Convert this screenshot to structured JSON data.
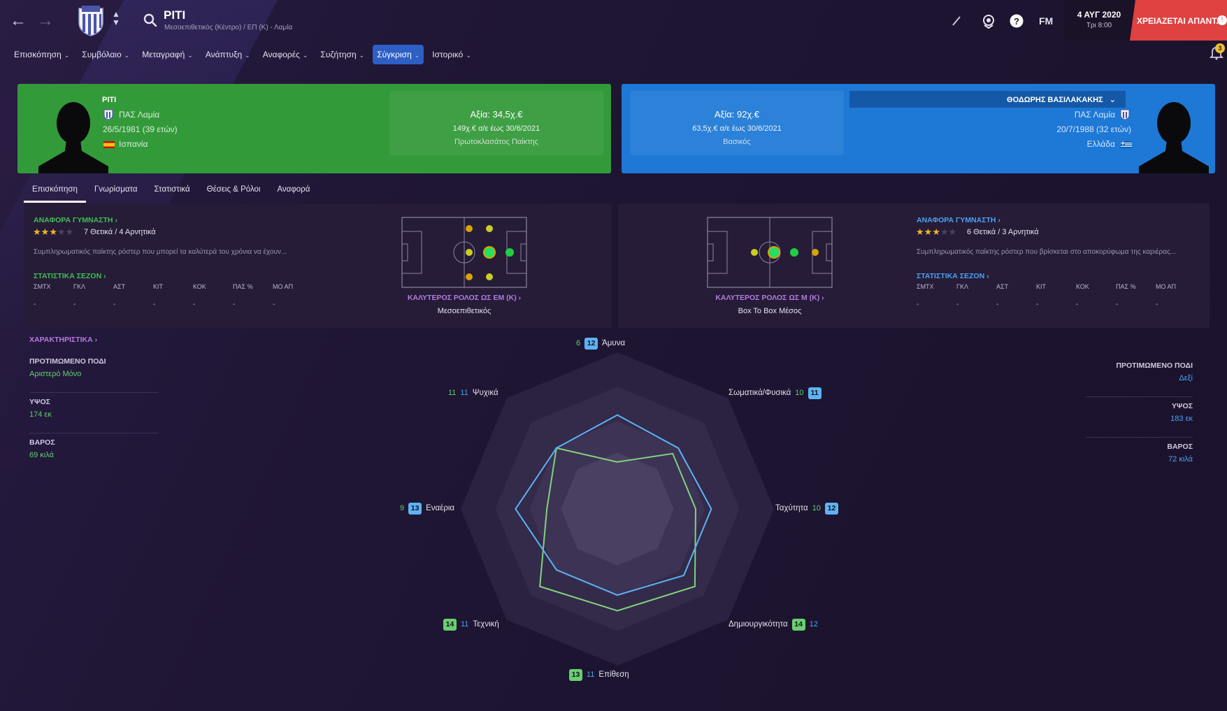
{
  "header": {
    "player_name": "PITI",
    "player_subtitle": "Μεσοεπιθετικός (Κέντρο) / ΕΠ (Κ) - Λαμία",
    "brand": "FM",
    "date": "4 ΑΥΓ 2020",
    "time": "Τρι 8:00",
    "alert": "ΧΡΕΙΑΖΕΤΑΙ ΑΠΑΝΤ...",
    "notification_count": "3"
  },
  "menu": [
    {
      "label": "Επισκόπηση",
      "active": false
    },
    {
      "label": "Συμβόλαιο",
      "active": false
    },
    {
      "label": "Μεταγραφή",
      "active": false
    },
    {
      "label": "Ανάπτυξη",
      "active": false
    },
    {
      "label": "Αναφορές",
      "active": false
    },
    {
      "label": "Συζήτηση",
      "active": false
    },
    {
      "label": "Σύγκριση",
      "active": true
    },
    {
      "label": "Ιστορικό",
      "active": false
    }
  ],
  "left_player": {
    "name": "PITI",
    "club": "ΠΑΣ Λαμία",
    "dob": "26/5/1981 (39 ετών)",
    "nationality": "Ισπανία",
    "value": "Αξία: 34,5χ.€",
    "wage": "149χ.€ α/ε έως 30/6/2021",
    "status": "Πρωτοκλασάτος Παίκτης",
    "color": "#339a3a"
  },
  "right_player": {
    "name": "ΘΟΔΩΡΗΣ ΒΑΣΙΛΑΚΑΚΗΣ",
    "club": "ΠΑΣ Λαμία",
    "dob": "20/7/1988 (32 ετών)",
    "nationality": "Ελλάδα",
    "value": "Αξία: 92χ.€",
    "wage": "63,5χ.€ α/ε έως 30/6/2021",
    "status": "Βασικός",
    "color": "#1d78d6"
  },
  "subtabs": [
    "Επισκόπηση",
    "Γνωρίσματα",
    "Στατιστικά",
    "Θέσεις & Ρόλοι",
    "Αναφορά"
  ],
  "left_panel": {
    "report_title": "ΑΝΑΦΟΡΑ ΓΥΜΝΑΣΤΗ",
    "stars": 3,
    "ratings": "7 Θετικά / 4 Αρνητικά",
    "description": "Συμπληρωματικός παίκτης ρόστερ που μπορεί τα καλύτερά του χρόνια να έχουν...",
    "season_title": "ΣΤΑΤΙΣΤΙΚΑ ΣΕΖΟΝ",
    "stat_headers": [
      "ΣΜΤΧ",
      "ΓΚΛ",
      "ΑΣΤ",
      "ΚΙΤ",
      "ΚΟΚ",
      "ΠΑΣ %",
      "ΜΟ ΑΠ"
    ],
    "stat_values": [
      "-",
      "-",
      "-",
      "-",
      "-",
      "-",
      "-"
    ],
    "role_title": "ΚΑΛΥΤΕΡΟΣ ΡΟΛΟΣ ΩΣ ΕΜ (Κ)",
    "role_value": "Μεσοεπιθετικός"
  },
  "right_panel": {
    "report_title": "ΑΝΑΦΟΡΑ ΓΥΜΝΑΣΤΗ",
    "stars": 3,
    "ratings": "6 Θετικά / 3 Αρνητικά",
    "description": "Συμπληρωματικός παίκτης ρόστερ που βρίσκεται στο αποκορύφωμα της καριέρας...",
    "season_title": "ΣΤΑΤΙΣΤΙΚΑ ΣΕΖΟΝ",
    "stat_headers": [
      "ΣΜΤΧ",
      "ΓΚΛ",
      "ΑΣΤ",
      "ΚΙΤ",
      "ΚΟΚ",
      "ΠΑΣ %",
      "ΜΟ ΑΠ"
    ],
    "stat_values": [
      "-",
      "-",
      "-",
      "-",
      "-",
      "-",
      "-"
    ],
    "role_title": "ΚΑΛΥΤΕΡΟΣ ΡΟΛΟΣ ΩΣ Μ (Κ)",
    "role_value": "Box To Box Μέσος"
  },
  "attributes": {
    "title": "ΧΑΡΑΚΤΗΡΙΣΤΙΚΑ",
    "left": {
      "foot_label": "ΠΡΟΤΙΜΩΜΕΝΟ ΠΟΔΙ",
      "foot": "Αριστερό Μόνο",
      "height_label": "ΥΨΟΣ",
      "height": "174 εκ",
      "weight_label": "ΒΑΡΟΣ",
      "weight": "69 κιλά"
    },
    "right": {
      "foot_label": "ΠΡΟΤΙΜΩΜΕΝΟ ΠΟΔΙ",
      "foot": "Δεξί",
      "height_label": "ΥΨΟΣ",
      "height": "183 εκ",
      "weight_label": "ΒΑΡΟΣ",
      "weight": "72 κιλά"
    }
  },
  "radar": {
    "axes": [
      "Άμυνα",
      "Σωματικά/Φυσικά",
      "Ταχύτητα",
      "Δημιουργικότητα",
      "Επίθεση",
      "Τεχνική",
      "Εναέρια",
      "Ψυχικά"
    ],
    "left_values": [
      6,
      10,
      10,
      14,
      13,
      14,
      9,
      11
    ],
    "right_values": [
      12,
      11,
      12,
      12,
      11,
      11,
      13,
      11
    ],
    "max": 20,
    "left_color": "#7fd47c",
    "right_color": "#5ab4f5"
  }
}
